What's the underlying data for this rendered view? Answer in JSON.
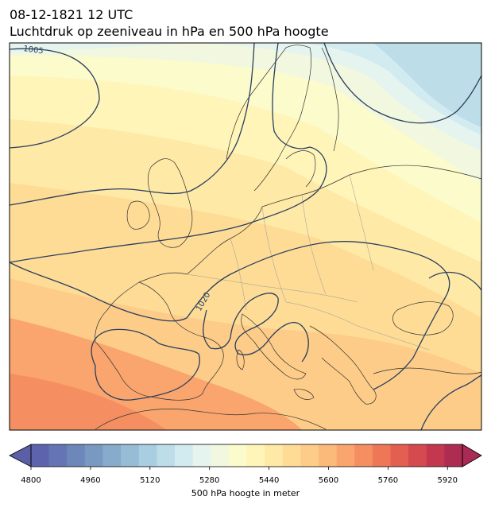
{
  "header": {
    "datetime": "08-12-1821 12 UTC",
    "subtitle": "Luchtdruk op zeeniveau in hPa en 500 hPa hoogte"
  },
  "map": {
    "isobar_labels": [
      "1005",
      "1020"
    ],
    "isobar_color": "#2a3f5f",
    "coastline_color": "#333333"
  },
  "colorbar": {
    "label": "500 hPa hoogte in meter",
    "ticks": [
      "4800",
      "4960",
      "5120",
      "5280",
      "5440",
      "5600",
      "5760",
      "5920"
    ],
    "range": [
      4800,
      5960
    ],
    "step": 40,
    "colors": [
      "#5e63ad",
      "#6575b3",
      "#6e87ba",
      "#7a99c2",
      "#87abcb",
      "#97bcd6",
      "#a9cde1",
      "#bddde9",
      "#d2ebf0",
      "#e5f4ef",
      "#f1f8df",
      "#fbfbcc",
      "#fff5b9",
      "#ffe9a6",
      "#fedc96",
      "#fdcc88",
      "#fbba7a",
      "#f9a56d",
      "#f58f61",
      "#ee7757",
      "#e35f51",
      "#d44a4e",
      "#c3384f",
      "#ad2c52"
    ]
  }
}
